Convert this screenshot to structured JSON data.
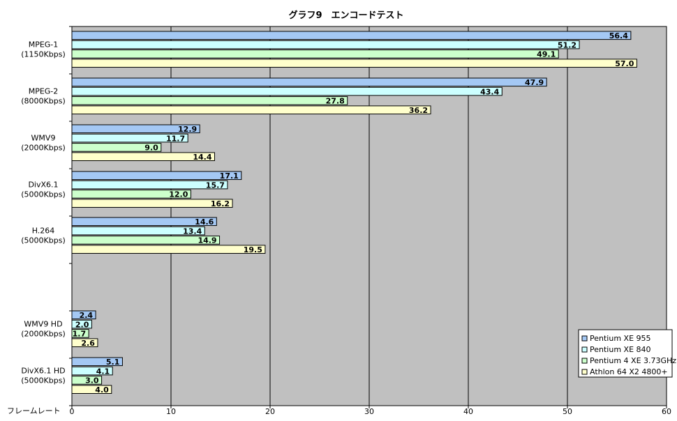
{
  "chart_data": {
    "type": "bar",
    "orientation": "horizontal",
    "title": "グラフ9　エンコードテスト",
    "xlabel": "フレームレート",
    "xlim": [
      0,
      60
    ],
    "xticks": [
      0,
      10,
      20,
      30,
      40,
      50,
      60
    ],
    "grid": true,
    "legend_position": "bottom-right",
    "categories": [
      [
        "MPEG-1",
        "(1150Kbps)"
      ],
      [
        "MPEG-2",
        "(8000Kbps)"
      ],
      [
        "WMV9",
        "(2000Kbps)"
      ],
      [
        "DivX6.1",
        "(5000Kbps)"
      ],
      [
        "H.264",
        "(5000Kbps)"
      ],
      [
        "WMV9 HD",
        "(2000Kbps)"
      ],
      [
        "DivX6.1 HD",
        "(5000Kbps)"
      ]
    ],
    "series": [
      {
        "name": "Pentium XE 955",
        "color": "#a4c8f4",
        "values": [
          56.4,
          47.9,
          12.9,
          17.1,
          14.6,
          2.4,
          5.1
        ]
      },
      {
        "name": "Pentium XE 840",
        "color": "#ccffff",
        "values": [
          51.2,
          43.4,
          11.7,
          15.7,
          13.4,
          2.0,
          4.1
        ]
      },
      {
        "name": "Pentium 4 XE 3.73GHz",
        "color": "#ccffcc",
        "values": [
          49.1,
          27.8,
          9.0,
          12.0,
          14.9,
          1.7,
          3.0
        ]
      },
      {
        "name": "Athlon 64 X2 4800+",
        "color": "#ffffcc",
        "values": [
          57.0,
          36.2,
          14.4,
          16.2,
          19.5,
          2.6,
          4.0
        ]
      }
    ],
    "plot_background": "#c0c0c0"
  }
}
